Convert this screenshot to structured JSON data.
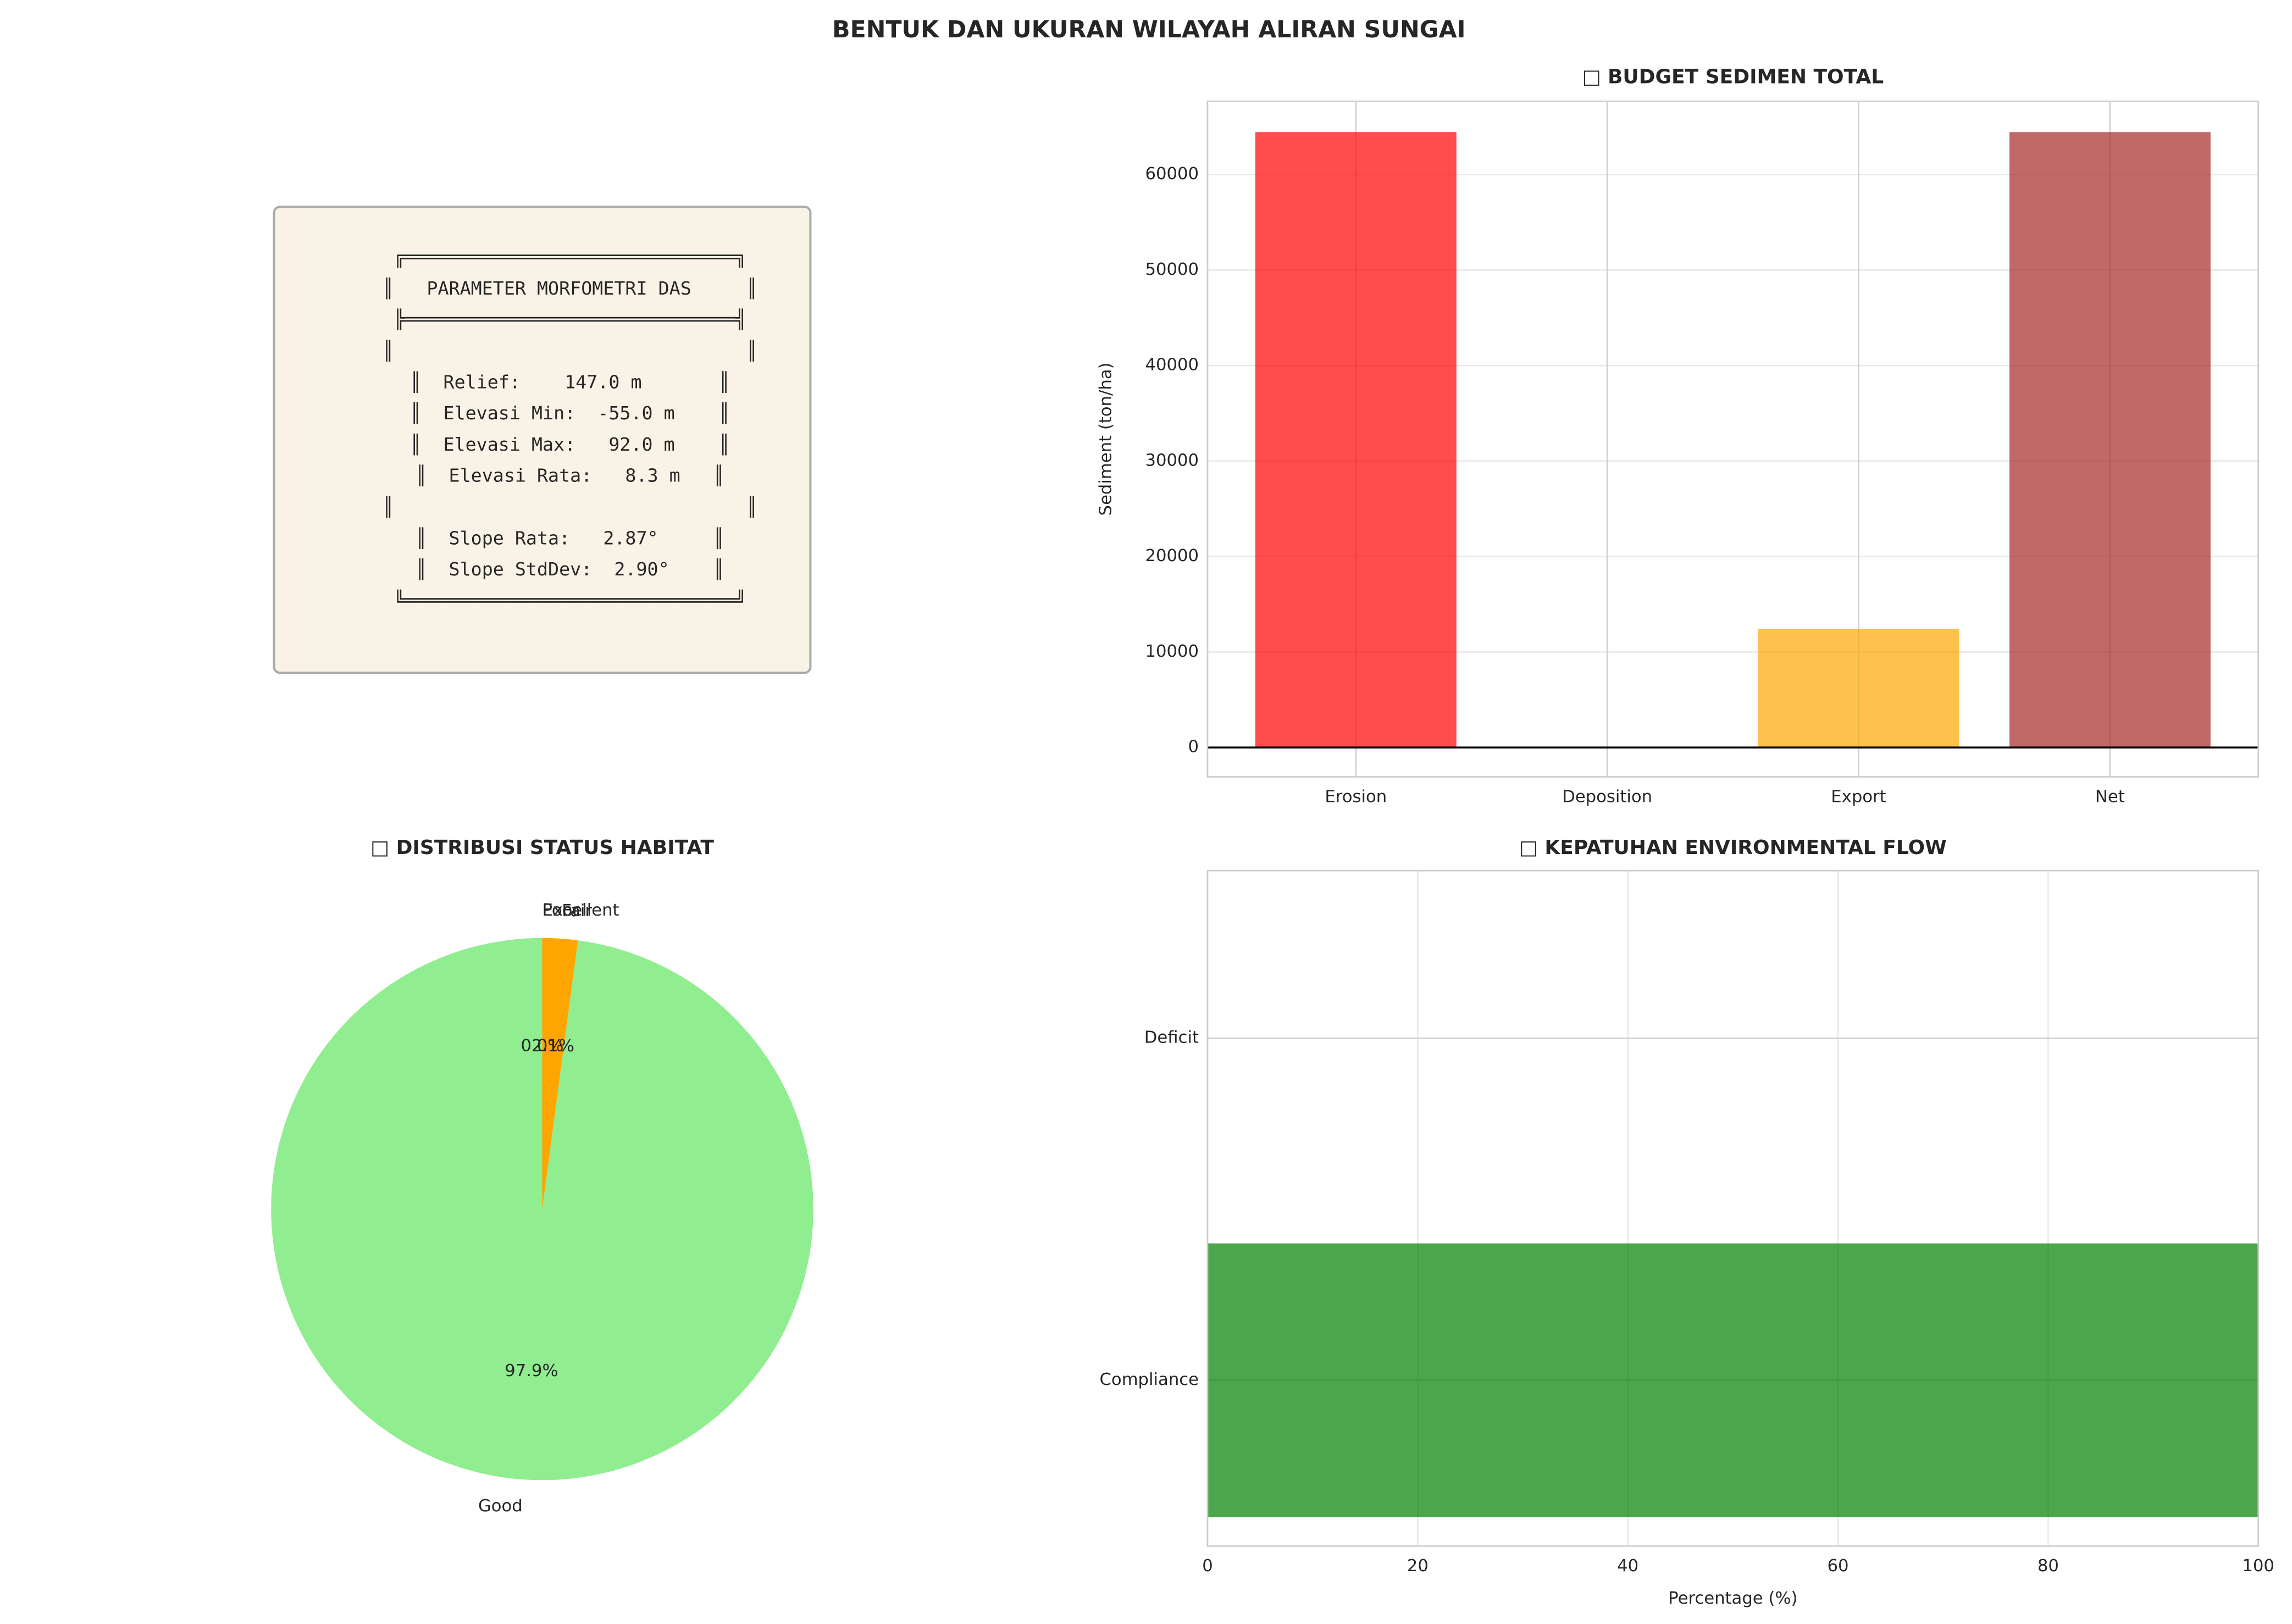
{
  "title": "BENTUK DAN UKURAN WILAYAH ALIRAN SUNGAI",
  "text_panel": {
    "lines": [
      "╔══════════════════════════════╗",
      "║   PARAMETER MORFOMETRI DAS     ║",
      "╠══════════════════════════════╣",
      "║                                ║",
      "║  Relief:    147.0 m       ║",
      "║  Elevasi Min:  -55.0 m    ║",
      "║  Elevasi Max:   92.0 m    ║",
      "║  Elevasi Rata:   8.3 m   ║",
      "║                                ║",
      "║  Slope Rata:   2.87°     ║",
      "║  Slope StdDev:  2.90°    ║",
      "╚══════════════════════════════╝"
    ]
  },
  "chart_data": [
    {
      "type": "bar",
      "title": "□ BUDGET SEDIMEN TOTAL",
      "y_label": "Sediment (ton/ha)",
      "categories": [
        "Erosion",
        "Deposition",
        "Export",
        "Net"
      ],
      "values": [
        64450,
        0,
        12430,
        64450
      ],
      "colors": [
        "#ff0000",
        "#008000",
        "#ffa500",
        "#a52a2a"
      ],
      "ylim": [
        -3070,
        67670
      ],
      "yticks": [
        0,
        10000,
        20000,
        30000,
        40000,
        50000,
        60000
      ],
      "grid": true
    },
    {
      "type": "pie",
      "title": "□ DISTRIBUSI STATUS HABITAT",
      "categories": [
        "Excellent",
        "Good",
        "Fair",
        "Poor"
      ],
      "values": [
        0,
        97.9,
        2.1,
        0
      ],
      "value_labels": [
        "0.0%",
        "97.9%",
        "2.1%",
        "0.0%"
      ],
      "colors": [
        "#006400",
        "#90ee90",
        "#ffa500",
        "#ff0000"
      ]
    },
    {
      "type": "barh",
      "title": "□ KEPATUHAN ENVIRONMENTAL FLOW",
      "x_label": "Percentage (%)",
      "categories": [
        "Compliance",
        "Deficit"
      ],
      "values": [
        100,
        0
      ],
      "colors": [
        "#008000",
        "#ff0000"
      ],
      "xlim": [
        0,
        100
      ],
      "xticks": [
        0,
        20,
        40,
        60,
        80,
        100
      ],
      "grid": true
    }
  ]
}
